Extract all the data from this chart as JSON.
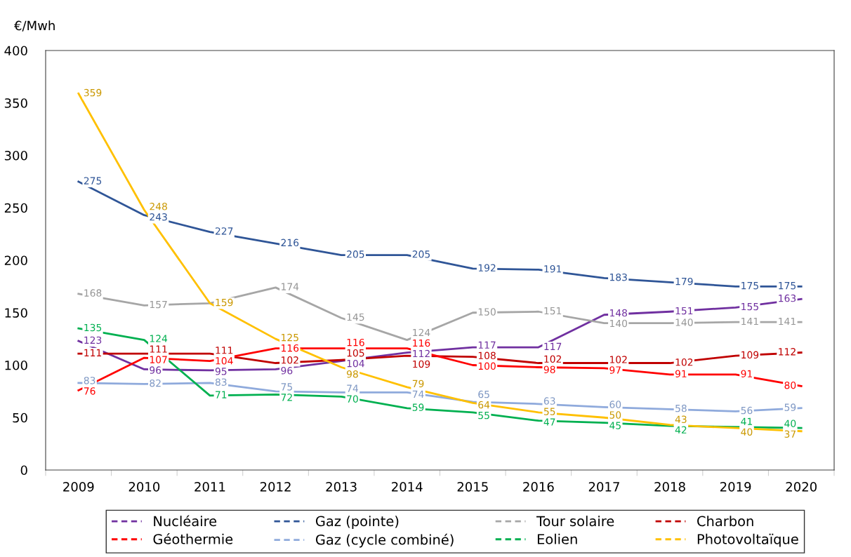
{
  "chart_data": {
    "type": "line",
    "ylabel": "€/Mwh",
    "categories": [
      "2009",
      "2010",
      "2011",
      "2012",
      "2013",
      "2014",
      "2015",
      "2016",
      "2017",
      "2018",
      "2019",
      "2020"
    ],
    "ylim": [
      0,
      400
    ],
    "yticks": [
      0,
      50,
      100,
      150,
      200,
      250,
      300,
      350,
      400
    ],
    "grid": false,
    "legend": "bottom",
    "marker": "none",
    "line_style": "solid",
    "series": [
      {
        "name": "Nucléaire",
        "color": "#7030a0",
        "values": [
          123,
          96,
          95,
          96,
          104,
          112,
          117,
          117,
          148,
          151,
          155,
          163
        ],
        "value_labels": [
          "123",
          "96",
          "95",
          "96",
          "104",
          "112",
          "117",
          "117",
          "148",
          "151",
          "155",
          "163"
        ]
      },
      {
        "name": "Gaz (pointe)",
        "color": "#2f5597",
        "values": [
          275,
          243,
          227,
          216,
          205,
          205,
          192,
          191,
          183,
          179,
          175,
          175
        ],
        "value_labels": [
          "275",
          "243",
          "227",
          "216",
          "205",
          "205",
          "192",
          "191",
          "183",
          "179",
          "175",
          "175"
        ]
      },
      {
        "name": "Tour solaire",
        "color": "#a6a6a6",
        "values": [
          168,
          157,
          159,
          174,
          145,
          124,
          150,
          151,
          140,
          140,
          141,
          141
        ],
        "value_labels": [
          "168",
          "157",
          null,
          "174",
          "145",
          "124",
          "150",
          "151",
          "140",
          "140",
          "141",
          "141"
        ]
      },
      {
        "name": "Charbon",
        "color": "#c00000",
        "values": [
          111,
          111,
          111,
          102,
          105,
          109,
          108,
          102,
          102,
          102,
          109,
          112
        ],
        "value_labels": [
          "111",
          "111",
          "111",
          "102",
          "105",
          "109",
          "108",
          "102",
          "102",
          "102",
          "109",
          "112"
        ]
      },
      {
        "name": "Géothermie",
        "color": "#ff0000",
        "values": [
          76,
          107,
          104,
          116,
          116,
          116,
          100,
          98,
          97,
          91,
          91,
          80
        ],
        "value_labels": [
          "76",
          "107",
          "104",
          "116",
          "116",
          "116",
          "100",
          "98",
          "97",
          "91",
          "91",
          "80"
        ]
      },
      {
        "name": "Gaz (cycle combiné)",
        "color": "#8faadc",
        "values": [
          83,
          82,
          83,
          75,
          74,
          74,
          65,
          63,
          60,
          58,
          56,
          59
        ],
        "value_labels": [
          "83",
          "82",
          "83",
          "75",
          "74",
          "74",
          "65",
          "63",
          "60",
          "58",
          "56",
          "59"
        ]
      },
      {
        "name": "Eolien",
        "color": "#00b050",
        "values": [
          135,
          124,
          71,
          72,
          70,
          59,
          55,
          47,
          45,
          42,
          41,
          40
        ],
        "value_labels": [
          "135",
          "124",
          "71",
          "72",
          "70",
          "59",
          "55",
          "47",
          "45",
          "42",
          "41",
          "40"
        ]
      },
      {
        "name": "Photovoltaïque",
        "color": "#ffc000",
        "values": [
          359,
          248,
          159,
          125,
          98,
          79,
          64,
          55,
          50,
          43,
          40,
          37
        ],
        "value_labels": [
          "359",
          "248",
          "159",
          "125",
          "98",
          "79",
          "64",
          "55",
          "50",
          "43",
          "40",
          "37"
        ]
      }
    ]
  }
}
